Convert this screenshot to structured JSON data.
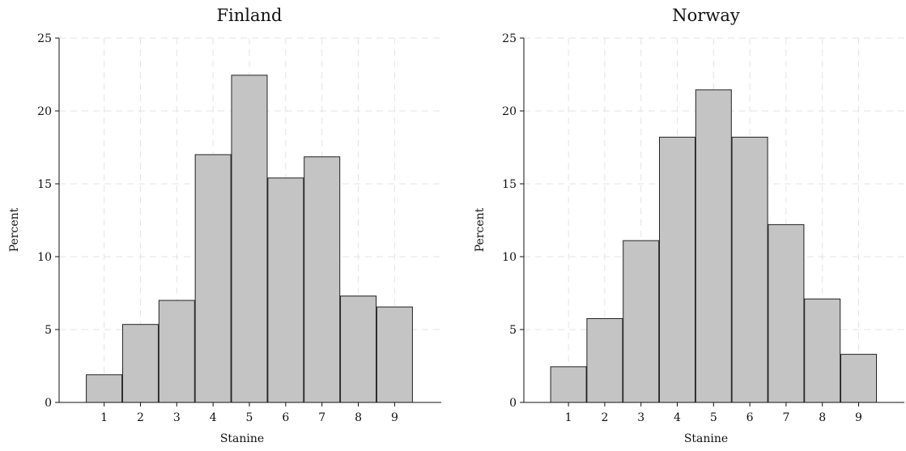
{
  "chart_data": [
    {
      "type": "bar",
      "title": "Finland",
      "xlabel": "Stanine",
      "ylabel": "Percent",
      "categories": [
        "1",
        "2",
        "3",
        "4",
        "5",
        "6",
        "7",
        "8",
        "9"
      ],
      "values": [
        1.9,
        5.35,
        7.0,
        17.0,
        22.45,
        15.4,
        16.85,
        7.3,
        6.55
      ],
      "ylim": [
        0,
        25
      ],
      "yticks": [
        "0",
        "5",
        "10",
        "15",
        "20",
        "25"
      ],
      "grid": true,
      "bar_color": "#c4c4c4"
    },
    {
      "type": "bar",
      "title": "Norway",
      "xlabel": "Stanine",
      "ylabel": "Percent",
      "categories": [
        "1",
        "2",
        "3",
        "4",
        "5",
        "6",
        "7",
        "8",
        "9"
      ],
      "values": [
        2.45,
        5.75,
        11.1,
        18.2,
        21.45,
        18.2,
        12.2,
        7.1,
        3.3
      ],
      "ylim": [
        0,
        25
      ],
      "yticks": [
        "0",
        "5",
        "10",
        "15",
        "20",
        "25"
      ],
      "grid": true,
      "bar_color": "#c4c4c4"
    }
  ]
}
